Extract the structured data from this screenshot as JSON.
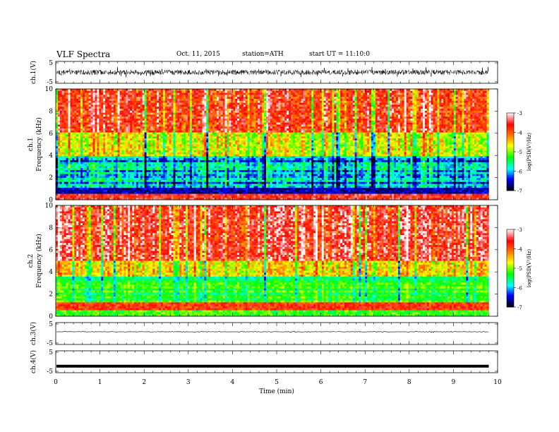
{
  "header": {
    "title": "VLF  Spectra",
    "date": "Oct. 11, 2015",
    "station": "station=ATH",
    "start": "start  UT =   11:10:0"
  },
  "chart_data": [
    {
      "type": "line",
      "panel": "ch1-waveform",
      "ylabel": "ch.1(V)",
      "ylim": [
        -5,
        5
      ],
      "yticks": [
        "5",
        "-5"
      ],
      "xlim": [
        0,
        10
      ],
      "x_end": 9.8,
      "description_series": "broadband noisy waveform, amplitude about ±1.5 V"
    },
    {
      "type": "heatmap",
      "panel": "ch1-spectrogram",
      "ylabel_channel": "ch.1",
      "ylabel": "Frequency  (kHz)",
      "ylim": [
        0,
        10
      ],
      "yticks": [
        "0",
        "2",
        "4",
        "6",
        "8",
        "10"
      ],
      "xlim": [
        0,
        10
      ],
      "colorbar": {
        "label": "log(PSD(V²/Hz)",
        "ticks": [
          "-3",
          "-4",
          "-5",
          "-6",
          "-7"
        ],
        "range": [
          -7,
          -3
        ]
      }
    },
    {
      "type": "heatmap",
      "panel": "ch2-spectrogram",
      "ylabel_channel": "ch.2",
      "ylabel": "Frequency  (kHz)",
      "ylim": [
        0,
        10
      ],
      "yticks": [
        "0",
        "2",
        "4",
        "6",
        "8",
        "10"
      ],
      "xlim": [
        0,
        10
      ],
      "colorbar": {
        "label": "log(PSD(V²/Hz)",
        "ticks": [
          "-3",
          "-4",
          "-5",
          "-6",
          "-7"
        ],
        "range": [
          -7,
          -3
        ]
      }
    },
    {
      "type": "line",
      "panel": "ch3-waveform",
      "ylabel": "ch.3(V)",
      "ylim": [
        -5,
        5
      ],
      "yticks": [
        "5",
        "-5"
      ],
      "xlim": [
        0,
        10
      ]
    },
    {
      "type": "line",
      "panel": "ch4-waveform",
      "ylabel": "ch.4(V)",
      "ylim": [
        -5,
        5
      ],
      "yticks": [
        "5",
        "-5"
      ],
      "xlim": [
        0,
        10
      ],
      "level": -2
    }
  ],
  "xaxis": {
    "label": "Time  (min)",
    "ticks": [
      "0",
      "1",
      "2",
      "3",
      "4",
      "5",
      "6",
      "7",
      "8",
      "9",
      "10"
    ]
  },
  "colors": {
    "spectrum": [
      "#000000",
      "#0000ff",
      "#00ffff",
      "#00ff00",
      "#ffff00",
      "#ff8000",
      "#ff0000",
      "#ffffff"
    ]
  }
}
